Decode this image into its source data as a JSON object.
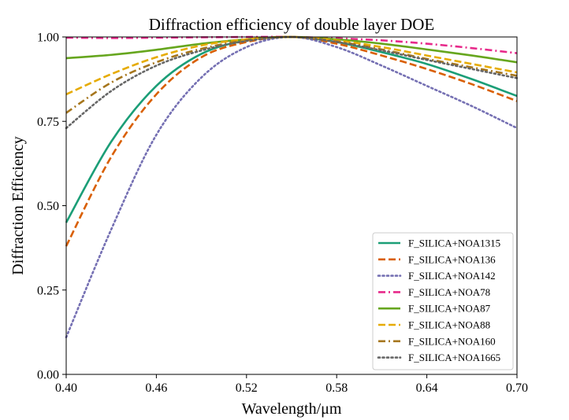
{
  "chart_data": {
    "type": "line",
    "title": "Diffraction efficiency of double layer DOE",
    "xlabel": "Wavelength/μm",
    "ylabel": "Diffraction Efficiency",
    "xlim": [
      0.4,
      0.7
    ],
    "ylim": [
      0.0,
      1.0
    ],
    "xticks": [
      "0.40",
      "0.46",
      "0.52",
      "0.58",
      "0.64",
      "0.70"
    ],
    "yticks": [
      "0.00",
      "0.25",
      "0.50",
      "0.75",
      "1.00"
    ],
    "grid": false,
    "legend_position": "lower-right",
    "x": [
      0.4,
      0.43,
      0.46,
      0.49,
      0.52,
      0.55,
      0.58,
      0.61,
      0.64,
      0.67,
      0.7
    ],
    "series": [
      {
        "name": "F_SILICA+NOA1315",
        "color": "#1b9e77",
        "style": "solid",
        "values": [
          0.45,
          0.69,
          0.855,
          0.95,
          0.99,
          1.0,
          0.985,
          0.955,
          0.92,
          0.875,
          0.825
        ]
      },
      {
        "name": "F_SILICA+NOA136",
        "color": "#d95f02",
        "style": "dashed",
        "values": [
          0.38,
          0.645,
          0.83,
          0.94,
          0.985,
          1.0,
          0.98,
          0.945,
          0.905,
          0.86,
          0.81
        ]
      },
      {
        "name": "F_SILICA+NOA142",
        "color": "#7570b3",
        "style": "dotted",
        "values": [
          0.11,
          0.43,
          0.71,
          0.88,
          0.97,
          1.0,
          0.97,
          0.915,
          0.855,
          0.795,
          0.73
        ]
      },
      {
        "name": "F_SILICA+NOA78",
        "color": "#e7298a",
        "style": "dashdot",
        "values": [
          0.998,
          0.997,
          0.998,
          0.999,
          1.0,
          1.0,
          0.996,
          0.99,
          0.98,
          0.967,
          0.952
        ]
      },
      {
        "name": "F_SILICA+NOA87",
        "color": "#66a61e",
        "style": "solid",
        "values": [
          0.937,
          0.947,
          0.962,
          0.98,
          0.993,
          1.0,
          0.993,
          0.98,
          0.963,
          0.945,
          0.925
        ]
      },
      {
        "name": "F_SILICA+NOA88",
        "color": "#e6ab02",
        "style": "dashed",
        "values": [
          0.83,
          0.89,
          0.94,
          0.975,
          0.993,
          1.0,
          0.99,
          0.97,
          0.945,
          0.92,
          0.895
        ]
      },
      {
        "name": "F_SILICA+NOA160",
        "color": "#a6761d",
        "style": "dashdot",
        "values": [
          0.775,
          0.865,
          0.925,
          0.965,
          0.99,
          1.0,
          0.987,
          0.963,
          0.935,
          0.91,
          0.885
        ]
      },
      {
        "name": "F_SILICA+NOA1665",
        "color": "#666666",
        "style": "dotted",
        "values": [
          0.73,
          0.84,
          0.915,
          0.96,
          0.988,
          1.0,
          0.985,
          0.96,
          0.932,
          0.905,
          0.878
        ]
      }
    ]
  }
}
